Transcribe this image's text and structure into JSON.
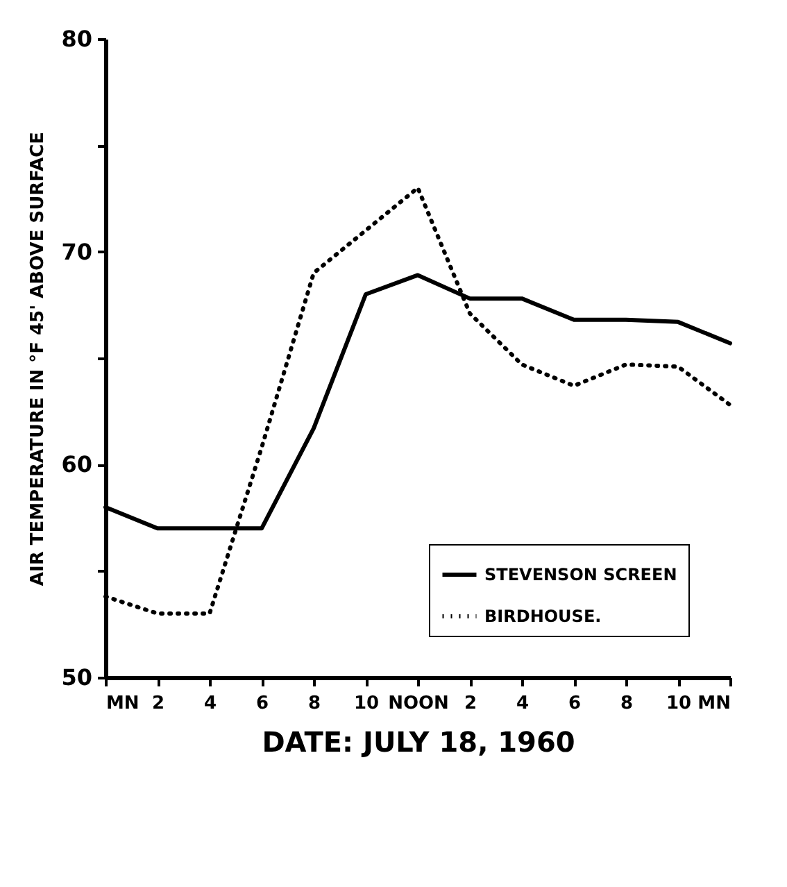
{
  "chart_data": {
    "type": "line",
    "xlabel": "DATE: JULY 18, 1960",
    "ylabel": "AIR TEMPERATURE IN °F 45' ABOVE SURFACE",
    "categories": [
      "MN",
      "2",
      "4",
      "6",
      "8",
      "10",
      "NOON",
      "2",
      "4",
      "6",
      "8",
      "10",
      "MN"
    ],
    "series": [
      {
        "name": "STEVENSON SCREEN",
        "color": "#000000",
        "line_style": "solid",
        "values": [
          58,
          57,
          57,
          57,
          61.7,
          68,
          68.9,
          67.8,
          67.8,
          66.8,
          66.8,
          66.7,
          65.7
        ]
      },
      {
        "name": "BIRDHOUSE.",
        "color": "#000000",
        "line_style": "dotted",
        "values": [
          53.8,
          53,
          53,
          60.8,
          69,
          71,
          73,
          67.1,
          64.7,
          63.7,
          64.7,
          64.6,
          62.8
        ]
      }
    ],
    "ylim": [
      50,
      80
    ],
    "yticks": [
      {
        "value": 50,
        "label": "50"
      },
      {
        "value": 55,
        "label": null
      },
      {
        "value": 60,
        "label": "60"
      },
      {
        "value": 65,
        "label": null
      },
      {
        "value": 70,
        "label": "70"
      },
      {
        "value": 75,
        "label": null
      },
      {
        "value": 80,
        "label": "80"
      }
    ],
    "legend": "bottom right",
    "marker": "none",
    "grid": false
  }
}
